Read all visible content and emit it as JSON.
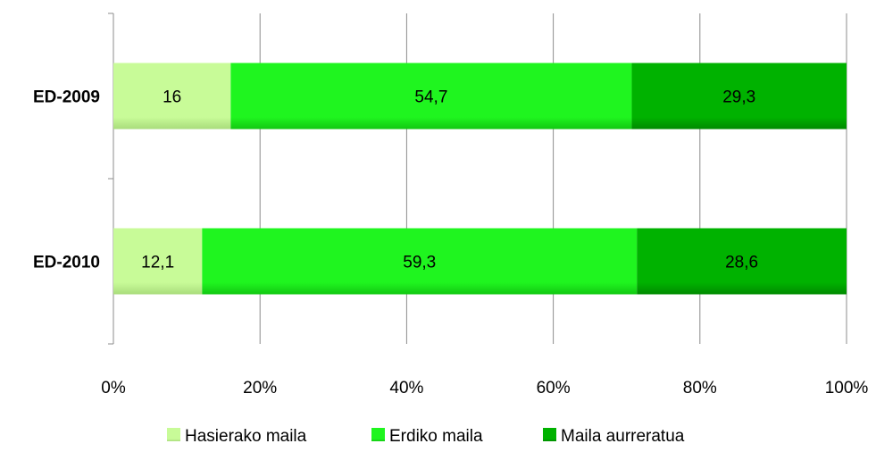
{
  "chart_data": {
    "type": "bar",
    "orientation": "horizontal",
    "stacked": "percent",
    "title": "",
    "xlabel": "",
    "ylabel": "",
    "xlim": [
      0,
      100
    ],
    "x_ticks": [
      "0%",
      "20%",
      "40%",
      "60%",
      "80%",
      "100%"
    ],
    "grid": true,
    "legend_position": "bottom",
    "categories": [
      "ED-2009",
      "ED-2010"
    ],
    "series": [
      {
        "name": "Hasierako maila",
        "color": "#c8fb98",
        "values": [
          16,
          12.1
        ],
        "labels": [
          "16",
          "12,1"
        ]
      },
      {
        "name": "Erdiko maila",
        "color": "#1ff51f",
        "values": [
          54.7,
          59.3
        ],
        "labels": [
          "54,7",
          "59,3"
        ]
      },
      {
        "name": "Maila aurreratua",
        "color": "#00b200",
        "values": [
          29.3,
          28.6
        ],
        "labels": [
          "29,3",
          "28,6"
        ]
      }
    ]
  }
}
